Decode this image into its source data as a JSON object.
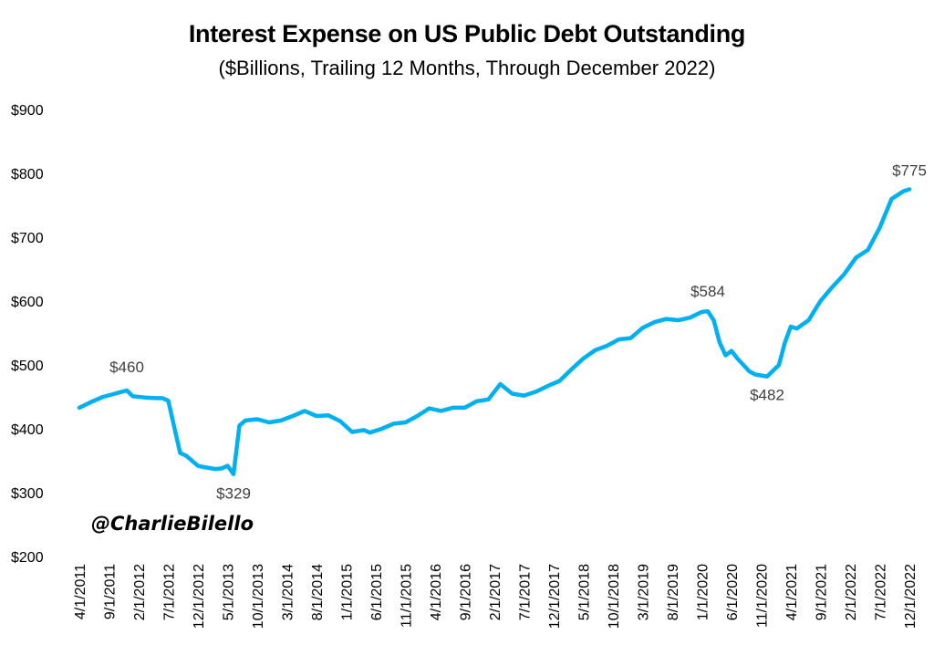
{
  "chart_data": {
    "type": "line",
    "title": "Interest Expense on US Public Debt Outstanding",
    "subtitle": "($Billions, Trailing 12 Months, Through December 2022)",
    "ylim": [
      200,
      900
    ],
    "y_ticks": [
      200,
      300,
      400,
      500,
      600,
      700,
      800,
      900
    ],
    "y_tick_labels": [
      "$200",
      "$300",
      "$400",
      "$500",
      "$600",
      "$700",
      "$800",
      "$900"
    ],
    "x_tick_labels": [
      "4/1/2011",
      "9/1/2011",
      "2/1/2012",
      "7/1/2012",
      "12/1/2012",
      "5/1/2013",
      "10/1/2013",
      "3/1/2014",
      "8/1/2014",
      "1/1/2015",
      "6/1/2015",
      "11/1/2015",
      "4/1/2016",
      "9/1/2016",
      "2/1/2017",
      "7/1/2017",
      "12/1/2017",
      "5/1/2018",
      "10/1/2018",
      "3/1/2019",
      "8/1/2019",
      "1/1/2020",
      "6/1/2020",
      "11/1/2020",
      "4/1/2021",
      "9/1/2021",
      "2/1/2022",
      "7/1/2022",
      "12/1/2022"
    ],
    "line_color": "#00B0F0",
    "grid": false,
    "series": [
      {
        "name": "",
        "x": [
          "2011-04",
          "2011-06",
          "2011-08",
          "2011-10",
          "2011-12",
          "2012-01",
          "2012-03",
          "2012-05",
          "2012-06",
          "2012-07",
          "2012-09",
          "2012-10",
          "2012-12",
          "2013-01",
          "2013-03",
          "2013-04",
          "2013-05",
          "2013-06",
          "2013-07",
          "2013-08",
          "2013-10",
          "2013-12",
          "2014-02",
          "2014-04",
          "2014-06",
          "2014-08",
          "2014-10",
          "2014-12",
          "2015-02",
          "2015-04",
          "2015-05",
          "2015-07",
          "2015-09",
          "2015-11",
          "2016-01",
          "2016-03",
          "2016-05",
          "2016-07",
          "2016-09",
          "2016-11",
          "2017-01",
          "2017-03",
          "2017-05",
          "2017-07",
          "2017-09",
          "2017-11",
          "2018-01",
          "2018-03",
          "2018-05",
          "2018-07",
          "2018-09",
          "2018-11",
          "2019-01",
          "2019-03",
          "2019-05",
          "2019-07",
          "2019-09",
          "2019-11",
          "2020-01",
          "2020-02",
          "2020-03",
          "2020-04",
          "2020-05",
          "2020-06",
          "2020-07",
          "2020-09",
          "2020-10",
          "2020-12",
          "2021-02",
          "2021-03",
          "2021-04",
          "2021-05",
          "2021-07",
          "2021-09",
          "2021-11",
          "2022-01",
          "2022-03",
          "2022-05",
          "2022-07",
          "2022-09",
          "2022-11",
          "2022-12"
        ],
        "values": [
          433,
          442,
          450,
          455,
          460,
          451,
          449,
          448,
          448,
          444,
          362,
          358,
          342,
          340,
          337,
          338,
          342,
          329,
          405,
          413,
          415,
          410,
          413,
          420,
          428,
          420,
          421,
          412,
          395,
          398,
          394,
          400,
          408,
          410,
          420,
          432,
          428,
          433,
          433,
          443,
          446,
          470,
          455,
          452,
          458,
          467,
          475,
          493,
          510,
          523,
          530,
          540,
          542,
          558,
          567,
          572,
          570,
          574,
          583,
          584,
          570,
          535,
          515,
          522,
          510,
          490,
          485,
          482,
          500,
          535,
          560,
          557,
          570,
          600,
          622,
          642,
          668,
          680,
          715,
          760,
          772,
          775
        ]
      }
    ],
    "annotations": [
      {
        "text": "$460",
        "x": "2011-12",
        "y": 460
      },
      {
        "text": "$329",
        "x": "2013-06",
        "y": 329
      },
      {
        "text": "$584",
        "x": "2020-02",
        "y": 584
      },
      {
        "text": "$482",
        "x": "2020-12",
        "y": 482
      },
      {
        "text": "$775",
        "x": "2022-12",
        "y": 775
      }
    ]
  },
  "watermark": "@CharlieBilello"
}
